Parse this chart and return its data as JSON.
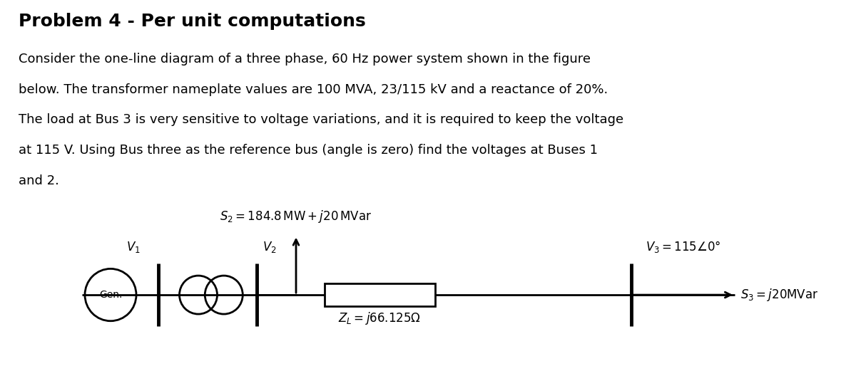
{
  "title": "Problem 4 - Per unit computations",
  "line1": "Consider the one-line diagram of a three phase, 60 Hz power system shown in the figure",
  "line2": "below. The transformer nameplate values are 100 MVA, 23/115 kV and a reactance of 20%.",
  "line3": "The load at Bus 3 is very sensitive to voltage variations, and it is required to keep the voltage",
  "line4": "at 115 V. Using Bus three as the reference bus (angle is zero) find the voltages at Buses 1",
  "line5": "and 2.",
  "bg_color": "#ffffff",
  "label_V1": "$V_1$",
  "label_V2": "$V_2$",
  "label_V3": "$V_3 = 115\\angle0°$",
  "label_Gen": "Gen.",
  "label_S2": "$S_2 = 184.8\\,\\mathrm{MW} + j20\\,\\mathrm{MVar}$",
  "label_ZL": "$Z_L = j66.125\\Omega$",
  "label_S3": "$S_3 = j20\\mathrm{MVar}$",
  "text_color": "#000000",
  "title_fontsize": 18,
  "body_fontsize": 13,
  "diagram_fontsize": 12
}
